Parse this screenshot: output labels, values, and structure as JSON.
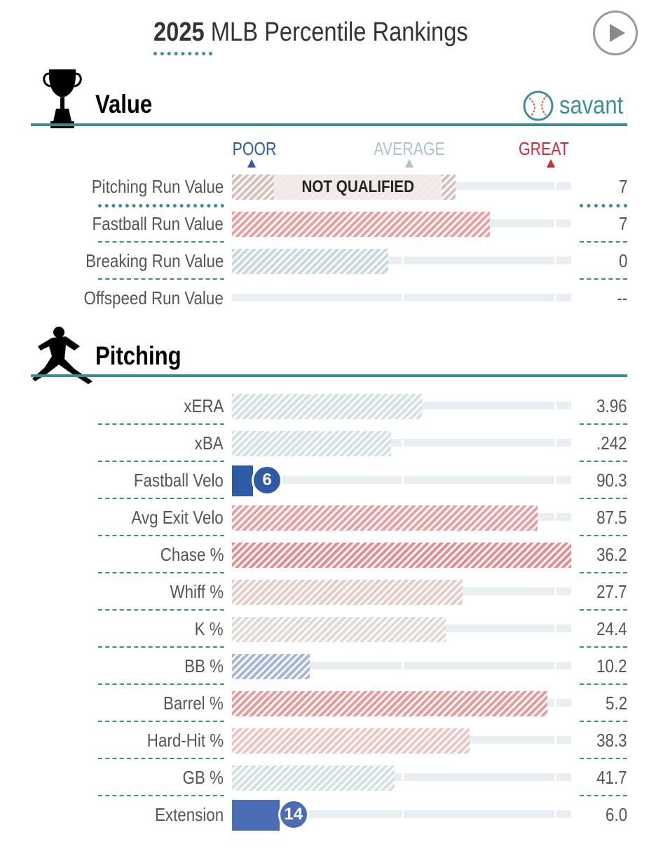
{
  "header": {
    "title_year": "2025",
    "title_rest": " MLB Percentile Rankings",
    "play_icon": "play-icon"
  },
  "value_section": {
    "title": "Value",
    "icon": "trophy-icon",
    "brand": {
      "text": "savant",
      "icon": "baseball-icon"
    }
  },
  "scale": {
    "poor": "POOR",
    "average": "AVERAGE",
    "great": "GREAT"
  },
  "pitching_section": {
    "title": "Pitching",
    "icon": "pitcher-icon"
  },
  "colors": {
    "accent": "#3d8a93",
    "poor": "#2c5ba6",
    "average": "#adc4cc",
    "great": "#d42a35"
  },
  "chart_data": {
    "type": "bar",
    "orientation": "horizontal",
    "title": "2025 MLB Percentile Rankings",
    "xlim": [
      0,
      100
    ],
    "value_rows": [
      {
        "label": "Pitching Run Value",
        "percentile": 66,
        "value": "7",
        "note": "NOT QUALIFIED",
        "color": "#d9bdb8"
      },
      {
        "label": "Fastball Run Value",
        "percentile": 76,
        "value": "7",
        "color": "#e9a09e"
      },
      {
        "label": "Breaking Run Value",
        "percentile": 46,
        "value": "0",
        "color": "#c7d9df"
      },
      {
        "label": "Offspeed Run Value",
        "percentile": null,
        "value": "--",
        "color": "#c7d9df"
      }
    ],
    "pitching_rows": [
      {
        "label": "xERA",
        "percentile": 56,
        "value": "3.96",
        "color": "#d3e0e5"
      },
      {
        "label": "xBA",
        "percentile": 47,
        "value": ".242",
        "color": "#d3e0e5"
      },
      {
        "label": "Fastball Velo",
        "percentile": 6,
        "value": "90.3",
        "bubble": "6",
        "color": "#2e5ba5"
      },
      {
        "label": "Avg Exit Velo",
        "percentile": 90,
        "value": "87.5",
        "color": "#e9a09e"
      },
      {
        "label": "Chase %",
        "percentile": 100,
        "value": "36.2",
        "color": "#e88d8d"
      },
      {
        "label": "Whiff %",
        "percentile": 68,
        "value": "27.7",
        "color": "#e8cbc7"
      },
      {
        "label": "K %",
        "percentile": 63,
        "value": "24.4",
        "color": "#e2d8d6"
      },
      {
        "label": "BB %",
        "percentile": 23,
        "value": "10.2",
        "color": "#a4b6d6"
      },
      {
        "label": "Barrel %",
        "percentile": 93,
        "value": "5.2",
        "color": "#e99b99"
      },
      {
        "label": "Hard-Hit %",
        "percentile": 70,
        "value": "38.3",
        "color": "#eac7c2"
      },
      {
        "label": "GB %",
        "percentile": 48,
        "value": "41.7",
        "color": "#d3e0e5"
      },
      {
        "label": "Extension",
        "percentile": 14,
        "value": "6.0",
        "bubble": "14",
        "color": "#4a6db5"
      }
    ]
  }
}
